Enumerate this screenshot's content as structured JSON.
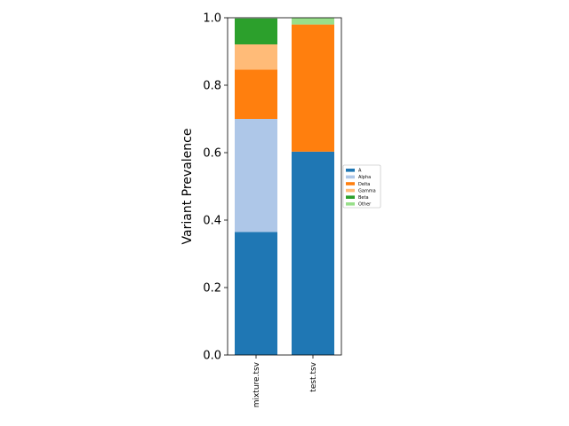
{
  "chart_data": {
    "type": "bar",
    "stacked": true,
    "orientation": "vertical",
    "categories": [
      "mixture.tsv",
      "test.tsv"
    ],
    "series": [
      {
        "name": "A",
        "color": "#1f77b4",
        "values": [
          0.365,
          0.603
        ]
      },
      {
        "name": "Alpha",
        "color": "#aec7e8",
        "values": [
          0.335,
          0.0
        ]
      },
      {
        "name": "Delta",
        "color": "#ff7f0e",
        "values": [
          0.146,
          0.377
        ]
      },
      {
        "name": "Gamma",
        "color": "#ffbb78",
        "values": [
          0.075,
          0.0
        ]
      },
      {
        "name": "Beta",
        "color": "#2ca02c",
        "values": [
          0.077,
          0.0
        ]
      },
      {
        "name": "Other",
        "color": "#98df8a",
        "values": [
          0.0,
          0.02
        ]
      }
    ],
    "xlabel": "",
    "ylabel": "Variant Prevalence",
    "ylim": [
      0,
      1.0
    ],
    "yticks": [
      "0.0",
      "0.2",
      "0.4",
      "0.6",
      "0.8",
      "1.0"
    ],
    "grid": false,
    "legend_position": "right"
  }
}
